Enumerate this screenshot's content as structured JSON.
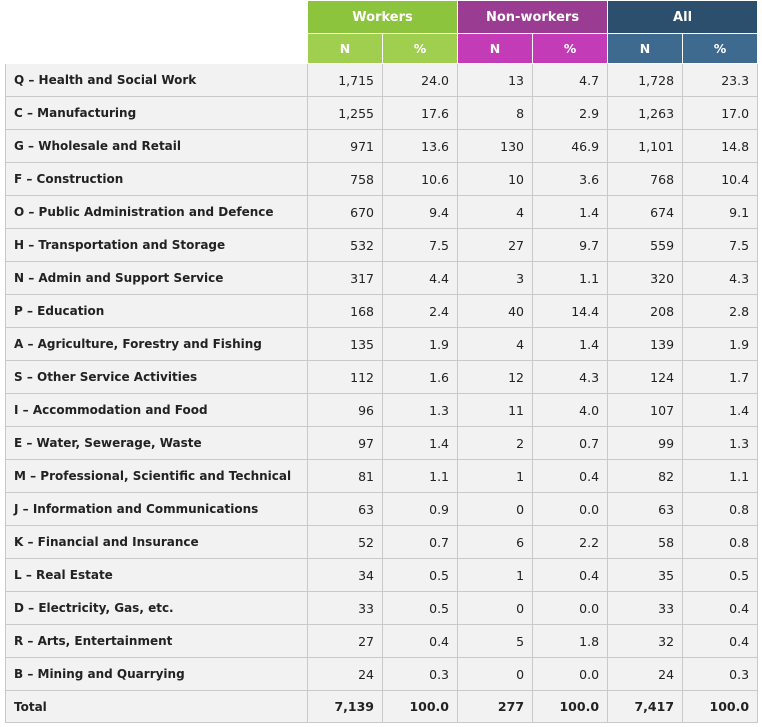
{
  "headers": {
    "groups": [
      "Workers",
      "Non-workers",
      "All"
    ],
    "sub": [
      "N",
      "%",
      "N",
      "%",
      "N",
      "%"
    ]
  },
  "colors": {
    "workers": "#8cc43d",
    "nonworkers": "#9a3c91",
    "all": "#2d4f6e",
    "row_bg": "#f2f2f2"
  },
  "rows": [
    {
      "label": "Q – Health and Social Work",
      "values": [
        "1,715",
        "24.0",
        "13",
        "4.7",
        "1,728",
        "23.3"
      ]
    },
    {
      "label": "C – Manufacturing",
      "values": [
        "1,255",
        "17.6",
        "8",
        "2.9",
        "1,263",
        "17.0"
      ]
    },
    {
      "label": "G – Wholesale and Retail",
      "values": [
        "971",
        "13.6",
        "130",
        "46.9",
        "1,101",
        "14.8"
      ]
    },
    {
      "label": "F – Construction",
      "values": [
        "758",
        "10.6",
        "10",
        "3.6",
        "768",
        "10.4"
      ]
    },
    {
      "label": "O – Public Administration and Defence",
      "values": [
        "670",
        "9.4",
        "4",
        "1.4",
        "674",
        "9.1"
      ]
    },
    {
      "label": "H – Transportation and Storage",
      "values": [
        "532",
        "7.5",
        "27",
        "9.7",
        "559",
        "7.5"
      ]
    },
    {
      "label": "N – Admin and Support Service",
      "values": [
        "317",
        "4.4",
        "3",
        "1.1",
        "320",
        "4.3"
      ]
    },
    {
      "label": "P – Education",
      "values": [
        "168",
        "2.4",
        "40",
        "14.4",
        "208",
        "2.8"
      ]
    },
    {
      "label": "A – Agriculture, Forestry and Fishing",
      "values": [
        "135",
        "1.9",
        "4",
        "1.4",
        "139",
        "1.9"
      ]
    },
    {
      "label": "S – Other Service Activities",
      "values": [
        "112",
        "1.6",
        "12",
        "4.3",
        "124",
        "1.7"
      ]
    },
    {
      "label": "I – Accommodation and Food",
      "values": [
        "96",
        "1.3",
        "11",
        "4.0",
        "107",
        "1.4"
      ]
    },
    {
      "label": "E – Water, Sewerage, Waste",
      "values": [
        "97",
        "1.4",
        "2",
        "0.7",
        "99",
        "1.3"
      ]
    },
    {
      "label": "M – Professional, Scientific and Technical",
      "values": [
        "81",
        "1.1",
        "1",
        "0.4",
        "82",
        "1.1"
      ]
    },
    {
      "label": "J – Information and Communications",
      "values": [
        "63",
        "0.9",
        "0",
        "0.0",
        "63",
        "0.8"
      ]
    },
    {
      "label": "K – Financial and Insurance",
      "values": [
        "52",
        "0.7",
        "6",
        "2.2",
        "58",
        "0.8"
      ]
    },
    {
      "label": "L – Real Estate",
      "values": [
        "34",
        "0.5",
        "1",
        "0.4",
        "35",
        "0.5"
      ]
    },
    {
      "label": "D – Electricity, Gas, etc.",
      "values": [
        "33",
        "0.5",
        "0",
        "0.0",
        "33",
        "0.4"
      ]
    },
    {
      "label": "R – Arts, Entertainment",
      "values": [
        "27",
        "0.4",
        "5",
        "1.8",
        "32",
        "0.4"
      ]
    },
    {
      "label": "B – Mining and Quarrying",
      "values": [
        "24",
        "0.3",
        "0",
        "0.0",
        "24",
        "0.3"
      ]
    }
  ],
  "total": {
    "label": "Total",
    "values": [
      "7,139",
      "100.0",
      "277",
      "100.0",
      "7,417",
      "100.0"
    ]
  }
}
